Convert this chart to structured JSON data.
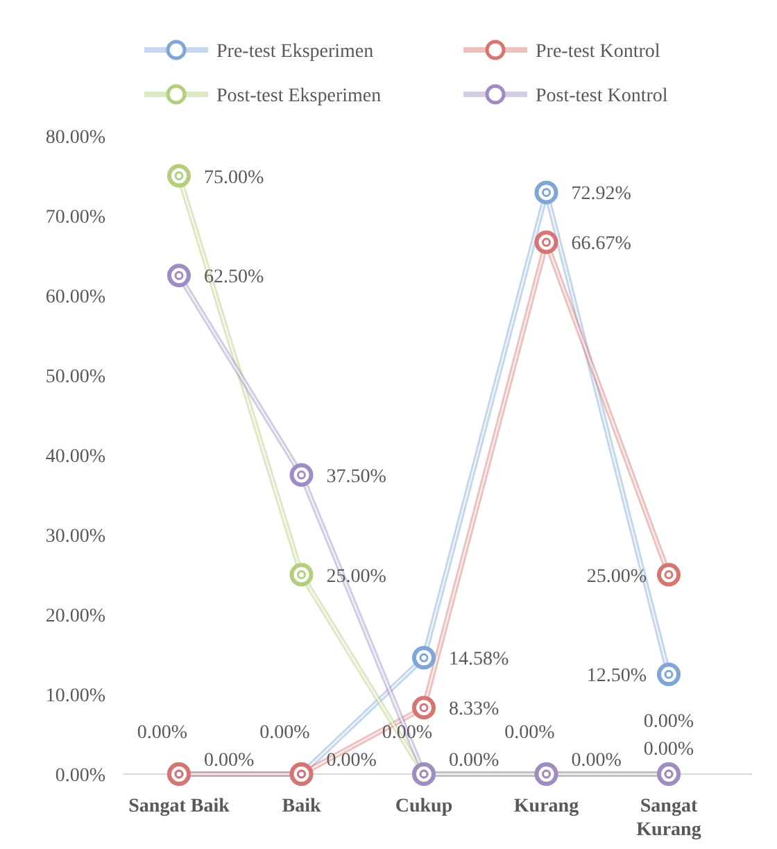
{
  "chart_data": {
    "type": "line",
    "categories": [
      "Sangat Baik",
      "Baik",
      "Cukup",
      "Kurang",
      "Sangat Kurang"
    ],
    "series": [
      {
        "name": "Pre-test Eksperimen",
        "color": "#7fa6d6",
        "values": [
          0,
          0,
          14.58,
          72.92,
          12.5
        ],
        "value_labels": [
          "0.00%",
          "0.00%",
          "14.58%",
          "72.92%",
          "12.50%"
        ]
      },
      {
        "name": "Pre-test Kontrol",
        "color": "#d77572",
        "values": [
          0,
          0,
          8.33,
          66.67,
          25
        ],
        "value_labels": [
          "0.00%",
          "0.00%",
          "8.33%",
          "66.67%",
          "25.00%"
        ]
      },
      {
        "name": "Post-test Eksperimen",
        "color": "#b3cf7c",
        "values": [
          75,
          25,
          0,
          0,
          0
        ],
        "value_labels": [
          "75.00%",
          "25.00%",
          "0.00%",
          "0.00%",
          "0.00%"
        ]
      },
      {
        "name": "Post-test Kontrol",
        "color": "#a08cc4",
        "values": [
          62.5,
          37.5,
          0,
          0,
          0
        ],
        "value_labels": [
          "62.50%",
          "37.50%",
          "0.00%",
          "0.00%",
          "0.00%"
        ]
      }
    ],
    "ylim": [
      0,
      80
    ],
    "yticks": [
      {
        "value": 0,
        "label": "0.00%"
      },
      {
        "value": 10,
        "label": "10.00%"
      },
      {
        "value": 20,
        "label": "20.00%"
      },
      {
        "value": 30,
        "label": "30.00%"
      },
      {
        "value": 40,
        "label": "40.00%"
      },
      {
        "value": 50,
        "label": "50.00%"
      },
      {
        "value": 60,
        "label": "60.00%"
      },
      {
        "value": 70,
        "label": "70.00%"
      },
      {
        "value": 80,
        "label": "80.00%"
      }
    ],
    "legend": "top",
    "marker": "circle",
    "line_style": "solid"
  }
}
